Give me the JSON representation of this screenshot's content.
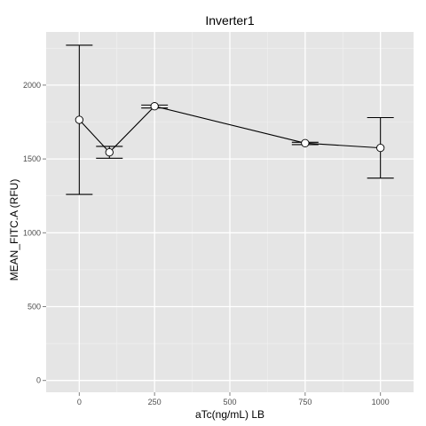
{
  "chart_data": {
    "type": "line",
    "title": "Inverter1",
    "xlabel": "aTc(ng/mL) LB",
    "ylabel": "MEAN_FITC.A  (RFU)",
    "xlim": [
      -110,
      1110
    ],
    "ylim": [
      -80,
      2360
    ],
    "xticks": [
      0,
      250,
      500,
      750,
      1000
    ],
    "xtick_labels": [
      "0",
      "250",
      "500",
      "750",
      "1000"
    ],
    "yticks": [
      0,
      500,
      1000,
      1500,
      2000
    ],
    "ytick_labels": [
      "0",
      "500",
      "1000",
      "1500",
      "2000"
    ],
    "grid": true,
    "legend": "none",
    "panel_color": "#E5E5E5",
    "grid_color": "#FFFFFF",
    "line_color": "#000000",
    "point_fill": "#FFFFFF",
    "points": [
      {
        "x": 0,
        "y": 1765,
        "ymin": 1260,
        "ymax": 2270
      },
      {
        "x": 100,
        "y": 1545,
        "ymin": 1505,
        "ymax": 1585
      },
      {
        "x": 250,
        "y": 1857,
        "ymin": 1845,
        "ymax": 1865
      },
      {
        "x": 750,
        "y": 1607,
        "ymin": 1597,
        "ymax": 1613
      },
      {
        "x": 1000,
        "y": 1575,
        "ymin": 1370,
        "ymax": 1780
      }
    ]
  }
}
